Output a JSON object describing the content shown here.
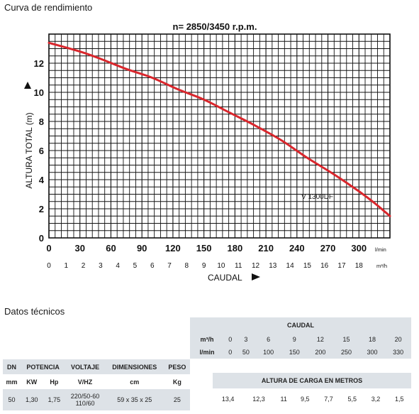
{
  "titles": {
    "curve": "Curva de rendimiento",
    "tech": "Datos técnicos"
  },
  "chart_data": {
    "type": "line",
    "title": "n= 2850/3450 r.p.m.",
    "xlabel": "CAUDAL",
    "ylabel": "ALTURA TOTAL (m)",
    "xlim": [
      0,
      330
    ],
    "ylim": [
      0,
      14
    ],
    "x_ticks": [
      "0",
      "30",
      "60",
      "90",
      "120",
      "150",
      "180",
      "210",
      "240",
      "270",
      "300"
    ],
    "x_unit": "l/min",
    "x2_ticks": [
      "0",
      "1",
      "2",
      "3",
      "4",
      "5",
      "6",
      "7",
      "8",
      "9",
      "10",
      "11",
      "12",
      "13",
      "14",
      "15",
      "16",
      "17",
      "18"
    ],
    "x2_unit": "m³/h",
    "y_ticks": [
      "0",
      "2",
      "4",
      "6",
      "8",
      "10",
      "12"
    ],
    "grid": true,
    "series": [
      {
        "name": "V 1300DF",
        "color": "#d9262c",
        "x": [
          0,
          30,
          50,
          75,
          100,
          125,
          150,
          175,
          200,
          225,
          250,
          275,
          300,
          315,
          330
        ],
        "y": [
          13.4,
          12.8,
          12.3,
          11.6,
          11.0,
          10.2,
          9.5,
          8.6,
          7.7,
          6.7,
          5.5,
          4.4,
          3.2,
          2.4,
          1.5
        ]
      }
    ]
  },
  "caudal_table": {
    "title": "CAUDAL",
    "m3h_label": "m³/h",
    "lmin_label": "l/min",
    "m3h": [
      "0",
      "3",
      "6",
      "9",
      "12",
      "15",
      "18",
      "20"
    ],
    "lmin": [
      "0",
      "50",
      "100",
      "150",
      "200",
      "250",
      "300",
      "330"
    ]
  },
  "altura_table": {
    "title": "ALTURA DE CARGA EN METROS",
    "values": [
      "13,4",
      "12,3",
      "11",
      "9,5",
      "7,7",
      "5,5",
      "3,2",
      "1,5"
    ]
  },
  "tech_table": {
    "dn": "DN",
    "potencia": "POTENCIA",
    "voltaje": "VOLTAJE",
    "dimensiones": "DIMENSIONES",
    "peso": "PESO",
    "u_mm": "mm",
    "u_kw": "KW",
    "u_hp": "Hp",
    "u_vhz": "V/HZ",
    "u_cm": "cm",
    "u_kg": "Kg",
    "v_dn": "50",
    "v_kw": "1,30",
    "v_hp": "1,75",
    "v_volt1": "220/50-60",
    "v_volt2": "110/60",
    "v_dim": "59 x 35 x 25",
    "v_peso": "25"
  }
}
